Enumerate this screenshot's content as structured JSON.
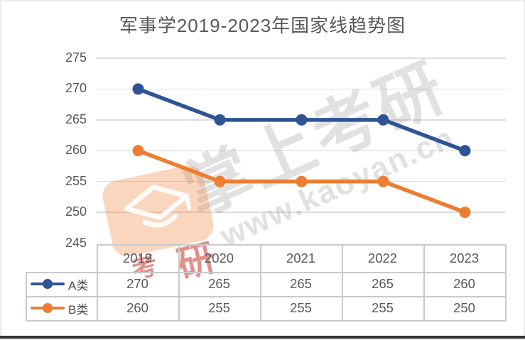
{
  "title": "军事学2019-2023年国家线趋势图",
  "watermark": {
    "brand": "掌上考研",
    "url": "www.kaoyan.cn",
    "logo_icon": "graduation-cap-icon",
    "stamp_char_small": "考",
    "stamp_char_large": "研"
  },
  "colors": {
    "series_a": "#2F5496",
    "series_b": "#ED7D31",
    "gridline": "#DCDCDC",
    "table_border": "#C9C9C9",
    "text": "#595959",
    "title_text": "#595959"
  },
  "chart_data": {
    "type": "line",
    "title": "军事学2019-2023年国家线趋势图",
    "categories": [
      "2019",
      "2020",
      "2021",
      "2022",
      "2023"
    ],
    "series": [
      {
        "name": "A类",
        "color": "#2F5496",
        "values": [
          270,
          265,
          265,
          265,
          260
        ]
      },
      {
        "name": "B类",
        "color": "#ED7D31",
        "values": [
          260,
          255,
          255,
          255,
          250
        ]
      }
    ],
    "xlabel": "",
    "ylabel": "",
    "ylim": [
      245,
      275
    ],
    "yticks": [
      275,
      270,
      265,
      260,
      255,
      250,
      245
    ],
    "grid": true,
    "legend_position": "data-table-left",
    "data_table_shown": true
  }
}
